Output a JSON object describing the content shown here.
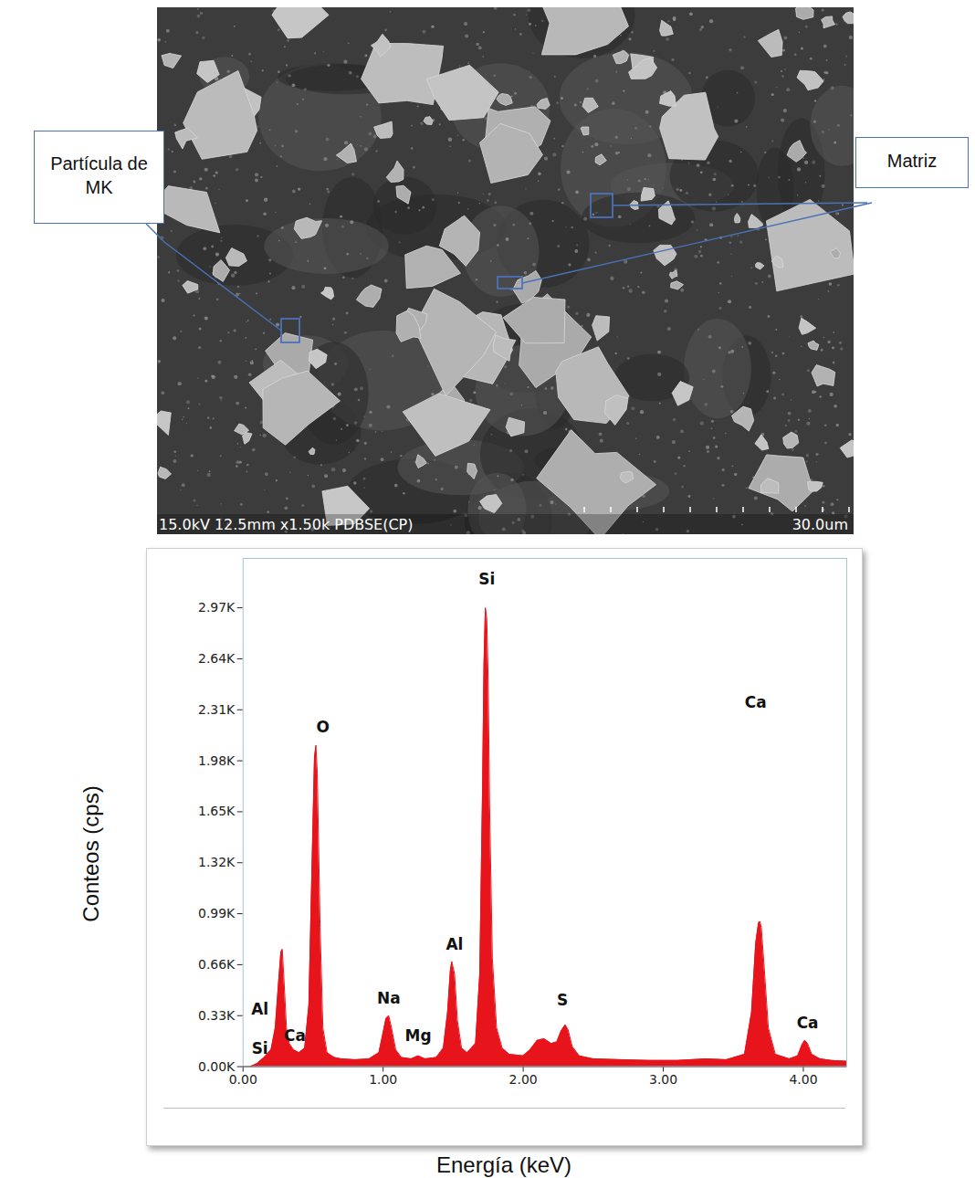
{
  "micrograph": {
    "annotations": [
      "Partícula de MK",
      "Matriz"
    ],
    "info_bar": "15.0kV 12.5mm x1.50k PDBSE(CP)",
    "scale_bar": "30.0um"
  },
  "chart_data": {
    "type": "area",
    "color": "#e8141c",
    "x_label": "Energía (keV)",
    "y_label": "Conteos (cps)",
    "xlim": [
      0,
      4.31
    ],
    "xticks": [
      {
        "value": 0,
        "label": "0.00"
      },
      {
        "value": 1,
        "label": "1.00"
      },
      {
        "value": 2,
        "label": "2.00"
      },
      {
        "value": 3,
        "label": "3.00"
      },
      {
        "value": 4,
        "label": "4.00"
      }
    ],
    "ylim": [
      0,
      3290
    ],
    "yticks": [
      {
        "value": 0,
        "label": "0.00K"
      },
      {
        "value": 330,
        "label": "0.33K"
      },
      {
        "value": 660,
        "label": "0.66K"
      },
      {
        "value": 990,
        "label": "0.99K"
      },
      {
        "value": 1320,
        "label": "1.32K"
      },
      {
        "value": 1650,
        "label": "1.65K"
      },
      {
        "value": 1980,
        "label": "1.98K"
      },
      {
        "value": 2310,
        "label": "2.31K"
      },
      {
        "value": 2640,
        "label": "2.64K"
      },
      {
        "value": 2970,
        "label": "2.97K"
      }
    ],
    "x": [
      0.0,
      0.05,
      0.1,
      0.15,
      0.2,
      0.23,
      0.25,
      0.27,
      0.28,
      0.29,
      0.31,
      0.33,
      0.36,
      0.4,
      0.44,
      0.47,
      0.49,
      0.51,
      0.52,
      0.53,
      0.55,
      0.57,
      0.6,
      0.65,
      0.7,
      0.8,
      0.9,
      0.97,
      1.0,
      1.02,
      1.04,
      1.06,
      1.09,
      1.13,
      1.2,
      1.25,
      1.3,
      1.38,
      1.43,
      1.46,
      1.48,
      1.49,
      1.51,
      1.53,
      1.56,
      1.6,
      1.66,
      1.69,
      1.71,
      1.72,
      1.73,
      1.74,
      1.75,
      1.76,
      1.78,
      1.81,
      1.85,
      1.9,
      2.0,
      2.05,
      2.1,
      2.15,
      2.2,
      2.24,
      2.27,
      2.3,
      2.32,
      2.35,
      2.4,
      2.5,
      2.7,
      2.9,
      3.1,
      3.3,
      3.45,
      3.58,
      3.63,
      3.66,
      3.68,
      3.69,
      3.7,
      3.72,
      3.75,
      3.8,
      3.9,
      3.96,
      3.99,
      4.01,
      4.03,
      4.06,
      4.12,
      4.2,
      4.31
    ],
    "values": [
      0,
      0,
      20,
      60,
      110,
      250,
      500,
      740,
      760,
      600,
      250,
      150,
      110,
      90,
      120,
      400,
      1200,
      2000,
      2080,
      1900,
      900,
      250,
      90,
      60,
      50,
      45,
      50,
      90,
      220,
      310,
      330,
      250,
      110,
      60,
      50,
      70,
      50,
      60,
      120,
      350,
      620,
      680,
      600,
      300,
      120,
      90,
      150,
      600,
      1800,
      2600,
      2970,
      2900,
      2500,
      1700,
      700,
      250,
      120,
      80,
      70,
      110,
      170,
      180,
      150,
      160,
      230,
      270,
      240,
      130,
      70,
      50,
      45,
      40,
      40,
      50,
      45,
      80,
      350,
      800,
      930,
      940,
      900,
      650,
      250,
      80,
      50,
      70,
      140,
      170,
      150,
      80,
      50,
      40,
      35
    ],
    "annotations": [
      {
        "text": "Al",
        "x": 0.12,
        "y": 371
      },
      {
        "text": "Si",
        "x": 0.12,
        "y": 118
      },
      {
        "text": "Ca",
        "x": 0.37,
        "y": 195
      },
      {
        "text": "O",
        "x": 0.57,
        "y": 2198
      },
      {
        "text": "Na",
        "x": 1.04,
        "y": 442
      },
      {
        "text": "Mg",
        "x": 1.25,
        "y": 195
      },
      {
        "text": "Al",
        "x": 1.51,
        "y": 790
      },
      {
        "text": "Si",
        "x": 1.74,
        "y": 3153
      },
      {
        "text": "S",
        "x": 2.28,
        "y": 430
      },
      {
        "text": "Ca",
        "x": 3.66,
        "y": 2357
      },
      {
        "text": "Ca",
        "x": 4.03,
        "y": 283
      }
    ]
  }
}
